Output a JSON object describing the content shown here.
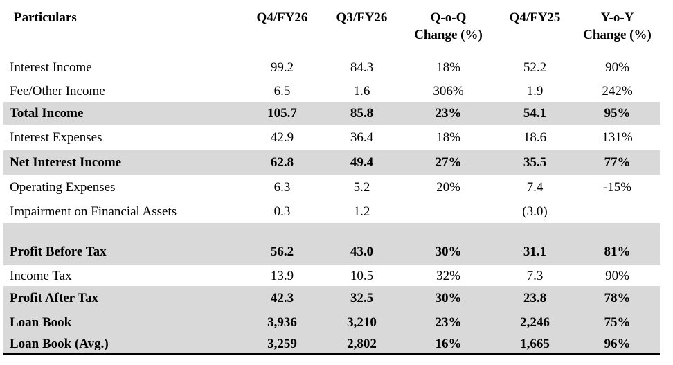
{
  "colors": {
    "row_shade": "#d9d9d9",
    "bottom_rule": "#000000",
    "text": "#000000",
    "background": "#ffffff"
  },
  "table": {
    "columns": [
      {
        "line1": "Particulars"
      },
      {
        "line1": "Q4/FY26"
      },
      {
        "line1": "Q3/FY26"
      },
      {
        "line1": "Q-o-Q",
        "line2": "Change (%)"
      },
      {
        "line1": "Q4/FY25"
      },
      {
        "line1": "Y-o-Y",
        "line2": "Change (%)"
      }
    ],
    "rows": [
      {
        "label": "Interest Income",
        "values": [
          "99.2",
          "84.3",
          "18%",
          "52.2",
          "90%"
        ],
        "style": "normal"
      },
      {
        "label": "Fee/Other Income",
        "values": [
          "6.5",
          "1.6",
          "306%",
          "1.9",
          "242%"
        ],
        "style": "normal"
      },
      {
        "label": "Total Income",
        "values": [
          "105.7",
          "85.8",
          "23%",
          "54.1",
          "95%"
        ],
        "style": "subtotal"
      },
      {
        "label": "Interest Expenses",
        "values": [
          "42.9",
          "36.4",
          "18%",
          "18.6",
          "131%"
        ],
        "style": "normal"
      },
      {
        "label": "Net Interest Income",
        "values": [
          "62.8",
          "49.4",
          "27%",
          "35.5",
          "77%"
        ],
        "style": "subtotal"
      },
      {
        "label": "Operating Expenses",
        "values": [
          "6.3",
          "5.2",
          "20%",
          "7.4",
          "-15%"
        ],
        "style": "normal"
      },
      {
        "label": "Impairment on Financial Assets",
        "values": [
          "0.3",
          "1.2",
          "",
          "(3.0)",
          ""
        ],
        "style": "normal"
      },
      {
        "label": "Profit Before Tax",
        "values": [
          "56.2",
          "43.0",
          "30%",
          "31.1",
          "81%"
        ],
        "style": "subtotal-tall"
      },
      {
        "label": "Income Tax",
        "values": [
          "13.9",
          "10.5",
          "32%",
          "7.3",
          "90%"
        ],
        "style": "normal"
      },
      {
        "label": "Profit After Tax",
        "values": [
          "42.3",
          "32.5",
          "30%",
          "23.8",
          "78%"
        ],
        "style": "subtotal"
      },
      {
        "label": "Loan Book",
        "values": [
          "3,936",
          "3,210",
          "23%",
          "2,246",
          "75%"
        ],
        "style": "subtotal"
      },
      {
        "label": "Loan Book (Avg.)",
        "values": [
          "3,259",
          "2,802",
          "16%",
          "1,665",
          "96%"
        ],
        "style": "subtotal"
      }
    ]
  },
  "chart_data": {
    "type": "table",
    "title": "Quarterly financial results",
    "categories": [
      "Q4/FY26",
      "Q3/FY26",
      "Q-o-Q Change (%)",
      "Q4/FY25",
      "Y-o-Y Change (%)"
    ],
    "series": [
      {
        "name": "Interest Income",
        "values": [
          99.2,
          84.3,
          "18%",
          52.2,
          "90%"
        ]
      },
      {
        "name": "Fee/Other Income",
        "values": [
          6.5,
          1.6,
          "306%",
          1.9,
          "242%"
        ]
      },
      {
        "name": "Total Income",
        "values": [
          105.7,
          85.8,
          "23%",
          54.1,
          "95%"
        ]
      },
      {
        "name": "Interest Expenses",
        "values": [
          42.9,
          36.4,
          "18%",
          18.6,
          "131%"
        ]
      },
      {
        "name": "Net Interest Income",
        "values": [
          62.8,
          49.4,
          "27%",
          35.5,
          "77%"
        ]
      },
      {
        "name": "Operating Expenses",
        "values": [
          6.3,
          5.2,
          "20%",
          7.4,
          "-15%"
        ]
      },
      {
        "name": "Impairment on Financial Assets",
        "values": [
          0.3,
          1.2,
          null,
          -3.0,
          null
        ]
      },
      {
        "name": "Profit Before Tax",
        "values": [
          56.2,
          43.0,
          "30%",
          31.1,
          "81%"
        ]
      },
      {
        "name": "Income Tax",
        "values": [
          13.9,
          10.5,
          "32%",
          7.3,
          "90%"
        ]
      },
      {
        "name": "Profit After Tax",
        "values": [
          42.3,
          32.5,
          "30%",
          23.8,
          "78%"
        ]
      },
      {
        "name": "Loan Book",
        "values": [
          3936,
          3210,
          "23%",
          2246,
          "75%"
        ]
      },
      {
        "name": "Loan Book (Avg.)",
        "values": [
          3259,
          2802,
          "16%",
          1665,
          "96%"
        ]
      }
    ]
  }
}
